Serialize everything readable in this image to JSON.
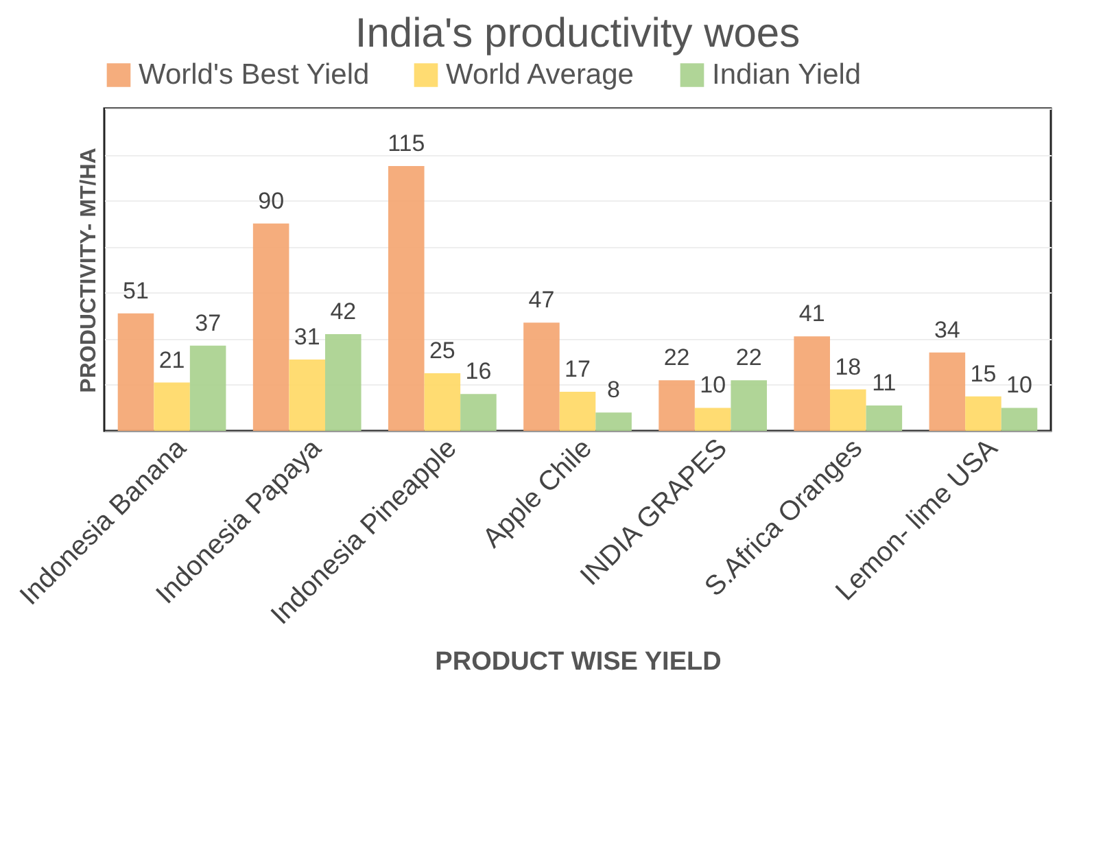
{
  "chart_data": {
    "type": "bar",
    "title": "India's productivity woes",
    "xlabel": "PRODUCT WISE YIELD",
    "ylabel": "PRODUCTIVITY- MT/HA",
    "categories": [
      "Indonesia Banana",
      "Indonesia Papaya",
      "Indonesia Pineapple",
      "Apple Chile",
      "INDIA GRAPES",
      "S.Africa Oranges",
      "Lemon- lime USA"
    ],
    "series": [
      {
        "name": "World's Best Yield",
        "color": "#f4a672",
        "values": [
          51,
          90,
          115,
          47,
          22,
          41,
          34
        ]
      },
      {
        "name": "World Average",
        "color": "#ffd966",
        "values": [
          21,
          31,
          25,
          17,
          10,
          18,
          15
        ]
      },
      {
        "name": "Indian Yield",
        "color": "#a9d18e",
        "values": [
          37,
          42,
          16,
          8,
          22,
          11,
          10
        ]
      }
    ],
    "ylim": [
      0,
      140
    ],
    "yticks": [
      {
        "value": 0,
        "label": null
      },
      {
        "value": 20,
        "label": null
      },
      {
        "value": 40,
        "label": null
      },
      {
        "value": 60,
        "label": null
      },
      {
        "value": 80,
        "label": null
      },
      {
        "value": 100,
        "label": null
      },
      {
        "value": 120,
        "label": null
      },
      {
        "value": 140,
        "label": null
      }
    ],
    "grid": "y",
    "legend": "top",
    "data_labels": true,
    "tick_labels": "x"
  }
}
